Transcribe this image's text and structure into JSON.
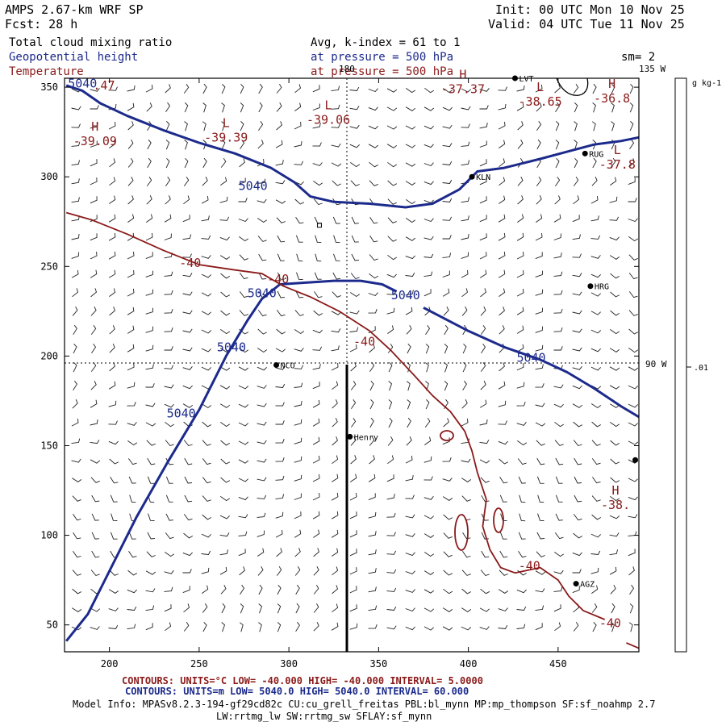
{
  "header": {
    "title": "AMPS 2.67-km WRF SP",
    "forecast": "Fcst:    28 h",
    "init": "Init: 00 UTC Mon 10 Nov 25",
    "valid": "Valid: 04 UTC Tue 11 Nov 25",
    "field1": "Total cloud mixing ratio",
    "field2": "Geopotential height",
    "field3": "Temperature",
    "avg": "Avg, k-index =  61 to   1",
    "pressure1": "at pressure =  500 hPa",
    "pressure2": "at pressure =  500 hPa",
    "smoothing": "sm= 2"
  },
  "colors": {
    "height": "#1c2a8c",
    "temperature": "#8b1a1a",
    "text": "#000000"
  },
  "chart_data": {
    "type": "contour",
    "title": "Total cloud mixing ratio / Geopotential height / Temperature at 500 hPa",
    "xlim": [
      175,
      495
    ],
    "ylim": [
      35,
      355
    ],
    "x_ticks": [
      200,
      250,
      300,
      350,
      400,
      450
    ],
    "y_ticks": [
      50,
      100,
      150,
      200,
      250,
      300,
      350
    ],
    "x_tick_labels": [
      "200",
      "250",
      "300",
      "350",
      "400",
      "450"
    ],
    "y_tick_labels": [
      "50",
      "100",
      "150",
      "200",
      "250",
      "300",
      "350"
    ],
    "meridian_labels": [
      "180",
      "135 W",
      "90 W"
    ],
    "colorbar": {
      "unit": "g kg-1",
      "tick_label": ".01"
    },
    "height_contours": [
      {
        "value": 5040,
        "points": [
          [
            176,
            351
          ],
          [
            185,
            348
          ],
          [
            195,
            341
          ],
          [
            210,
            334
          ],
          [
            230,
            326
          ],
          [
            250,
            319
          ],
          [
            270,
            313
          ],
          [
            290,
            305
          ],
          [
            303,
            297
          ],
          [
            312,
            289
          ],
          [
            325,
            286
          ],
          [
            345,
            285
          ],
          [
            365,
            283
          ],
          [
            380,
            285
          ],
          [
            395,
            293
          ],
          [
            405,
            303
          ],
          [
            420,
            305
          ],
          [
            440,
            310
          ],
          [
            455,
            314
          ],
          [
            470,
            318
          ],
          [
            485,
            320
          ],
          [
            495,
            322
          ]
        ]
      },
      {
        "value": 5040,
        "points": [
          [
            176,
            41
          ],
          [
            188,
            56
          ],
          [
            200,
            80
          ],
          [
            215,
            110
          ],
          [
            232,
            140
          ],
          [
            250,
            170
          ],
          [
            265,
            200
          ],
          [
            277,
            220
          ],
          [
            285,
            232
          ],
          [
            295,
            240
          ],
          [
            310,
            241
          ],
          [
            325,
            242
          ],
          [
            340,
            242
          ],
          [
            352,
            240
          ],
          [
            360,
            236
          ]
        ]
      },
      {
        "value": 5040,
        "points": [
          [
            375,
            227
          ],
          [
            400,
            214
          ],
          [
            420,
            205
          ],
          [
            440,
            198
          ],
          [
            455,
            191
          ],
          [
            470,
            182
          ],
          [
            485,
            172
          ],
          [
            495,
            166
          ]
        ]
      }
    ],
    "temperature_contours": [
      {
        "value": -40,
        "points": [
          [
            176,
            280
          ],
          [
            190,
            276
          ],
          [
            210,
            268
          ],
          [
            230,
            259
          ],
          [
            250,
            251
          ],
          [
            270,
            248
          ],
          [
            285,
            246
          ],
          [
            297,
            239
          ],
          [
            312,
            233
          ],
          [
            328,
            225
          ],
          [
            345,
            214
          ],
          [
            357,
            203
          ],
          [
            370,
            189
          ],
          [
            380,
            178
          ],
          [
            390,
            169
          ],
          [
            398,
            158
          ],
          [
            402,
            147
          ],
          [
            405,
            135
          ],
          [
            410,
            120
          ],
          [
            408,
            105
          ],
          [
            412,
            92
          ],
          [
            418,
            82
          ],
          [
            426,
            79
          ],
          [
            440,
            82
          ],
          [
            450,
            75
          ],
          [
            456,
            66
          ],
          [
            464,
            58
          ],
          [
            476,
            53
          ]
        ]
      },
      {
        "value": -40,
        "points": [
          [
            488,
            40
          ],
          [
            495,
            37
          ]
        ]
      }
    ],
    "stations": [
      {
        "name": "LVT",
        "x": 426,
        "y": 355
      },
      {
        "name": "RUG",
        "x": 465,
        "y": 313
      },
      {
        "name": "KLN",
        "x": 402,
        "y": 300
      },
      {
        "name": "HRG",
        "x": 468,
        "y": 239
      },
      {
        "name": "NCO",
        "x": 293,
        "y": 195
      },
      {
        "name": "Henry",
        "x": 334,
        "y": 155
      },
      {
        "name": "AGZ",
        "x": 460,
        "y": 73
      },
      {
        "name": "",
        "x": 493,
        "y": 142
      }
    ],
    "extrema": [
      {
        "kind": "H",
        "value": "-39.09",
        "x": 192,
        "y": 323
      },
      {
        "kind": "L",
        "value": "-39.39",
        "x": 265,
        "y": 325
      },
      {
        "kind": "L",
        "value": "-39.06",
        "x": 322,
        "y": 335
      },
      {
        "kind": "H",
        "value": "-37.37",
        "x": 397,
        "y": 352
      },
      {
        "kind": "L",
        "value": "-38.65",
        "x": 440,
        "y": 345
      },
      {
        "kind": "H",
        "value": "-36.8",
        "x": 480,
        "y": 347
      },
      {
        "kind": "L",
        "value": "-37.8",
        "x": 483,
        "y": 310
      },
      {
        "kind": "H",
        "value": "-38.",
        "x": 482,
        "y": 120
      }
    ],
    "contour_labels": [
      {
        "text": "5040",
        "x": 185,
        "y": 352,
        "series": "height"
      },
      {
        "text": ".47",
        "x": 197,
        "y": 351,
        "series": "temperature"
      },
      {
        "text": "5040",
        "x": 280,
        "y": 295,
        "series": "height"
      },
      {
        "text": "5040",
        "x": 285,
        "y": 235,
        "series": "height"
      },
      {
        "text": "5040",
        "x": 365,
        "y": 234,
        "series": "height"
      },
      {
        "text": "5040",
        "x": 268,
        "y": 205,
        "series": "height"
      },
      {
        "text": "5040",
        "x": 240,
        "y": 168,
        "series": "height"
      },
      {
        "text": "5040",
        "x": 435,
        "y": 199,
        "series": "height"
      },
      {
        "text": "-40",
        "x": 245,
        "y": 252,
        "series": "temperature"
      },
      {
        "text": "-40",
        "x": 294,
        "y": 243,
        "series": "temperature"
      },
      {
        "text": "-40",
        "x": 342,
        "y": 208,
        "series": "temperature"
      },
      {
        "text": "-40",
        "x": 434,
        "y": 83,
        "series": "temperature"
      },
      {
        "text": "-40",
        "x": 479,
        "y": 51,
        "series": "temperature"
      }
    ],
    "cloud_marker": {
      "x": 317,
      "y": 273
    }
  },
  "footer": {
    "temp_contours": "CONTOURS:  UNITS=°C  LOW= -40.000      HIGH= -40.000      INTERVAL=   5.0000",
    "height_contours": "CONTOURS:  UNITS=m  LOW=  5040.0      HIGH=  5040.0      INTERVAL=   60.000",
    "model_info": "Model Info: MPASv8.2.3-194-gf29cd82c CU:cu_grell_freitas PBL:bl_mynn MP:mp_thompson SF:sf_noahmp 2.7",
    "model_info2": "LW:rrtmg_lw SW:rrtmg_sw SFLAY:sf_mynn"
  }
}
